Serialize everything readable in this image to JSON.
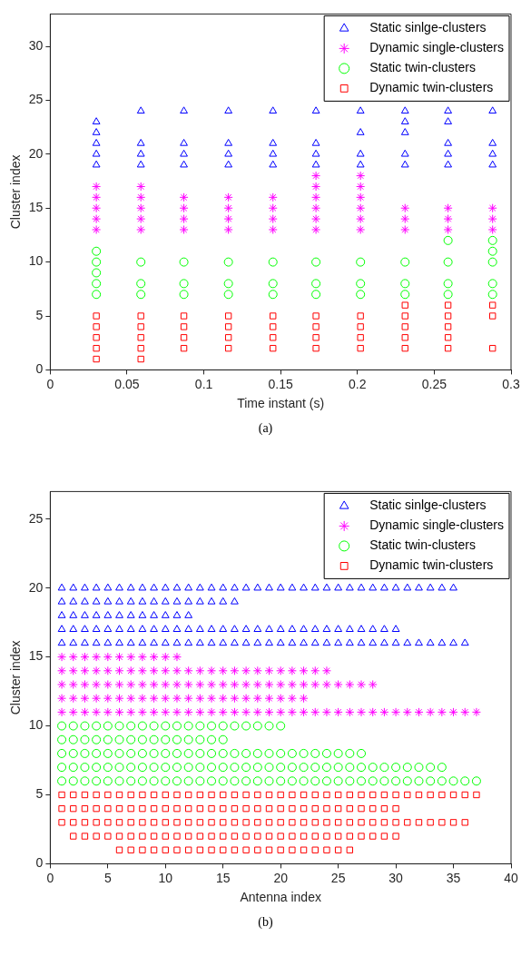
{
  "chart_data": [
    {
      "type": "scatter",
      "xlabel": "Time instant (s)",
      "ylabel": "Cluster index",
      "xlim": [
        0,
        0.3
      ],
      "ylim": [
        0,
        33
      ],
      "xticks": [
        0,
        0.05,
        0.1,
        0.15,
        0.2,
        0.25,
        0.3
      ],
      "yticks": [
        0,
        5,
        10,
        15,
        20,
        25,
        30
      ],
      "grid": false,
      "legend": "top right",
      "annotations": [
        "(a)"
      ],
      "series": [
        {
          "name": "Static sinlge-clusters",
          "color": "#0000ff",
          "marker": "triangle",
          "x": [
            0.03,
            0.03,
            0.03,
            0.03,
            0.03,
            0.059,
            0.059,
            0.059,
            0.059,
            0.087,
            0.087,
            0.087,
            0.087,
            0.116,
            0.116,
            0.116,
            0.116,
            0.145,
            0.145,
            0.145,
            0.145,
            0.173,
            0.173,
            0.173,
            0.173,
            0.202,
            0.202,
            0.202,
            0.202,
            0.231,
            0.231,
            0.231,
            0.231,
            0.231,
            0.259,
            0.259,
            0.259,
            0.259,
            0.259,
            0.288,
            0.288,
            0.288,
            0.288
          ],
          "values": [
            19,
            20,
            21,
            22,
            23,
            19,
            20,
            21,
            24,
            19,
            20,
            21,
            24,
            19,
            20,
            21,
            24,
            19,
            20,
            21,
            24,
            19,
            20,
            21,
            24,
            19,
            20,
            22,
            24,
            19,
            20,
            22,
            23,
            24,
            19,
            20,
            21,
            23,
            24,
            19,
            20,
            21,
            24
          ]
        },
        {
          "name": "Dynamic single-clusters",
          "color": "#ff00ff",
          "marker": "cross",
          "x": [
            0.03,
            0.03,
            0.03,
            0.03,
            0.03,
            0.059,
            0.059,
            0.059,
            0.059,
            0.059,
            0.087,
            0.087,
            0.087,
            0.087,
            0.116,
            0.116,
            0.116,
            0.116,
            0.145,
            0.145,
            0.145,
            0.145,
            0.173,
            0.173,
            0.173,
            0.173,
            0.173,
            0.173,
            0.202,
            0.202,
            0.202,
            0.202,
            0.202,
            0.202,
            0.231,
            0.231,
            0.231,
            0.259,
            0.259,
            0.259,
            0.288,
            0.288,
            0.288
          ],
          "values": [
            13,
            14,
            15,
            16,
            17,
            13,
            14,
            15,
            16,
            17,
            13,
            14,
            15,
            16,
            13,
            14,
            15,
            16,
            13,
            14,
            15,
            16,
            13,
            14,
            15,
            16,
            17,
            18,
            13,
            14,
            15,
            16,
            17,
            18,
            13,
            14,
            15,
            13,
            14,
            15,
            13,
            14,
            15
          ]
        },
        {
          "name": "Static twin-clusters",
          "color": "#00ff00",
          "marker": "circle",
          "x": [
            0.03,
            0.03,
            0.03,
            0.03,
            0.03,
            0.059,
            0.059,
            0.059,
            0.087,
            0.087,
            0.087,
            0.116,
            0.116,
            0.116,
            0.145,
            0.145,
            0.145,
            0.173,
            0.173,
            0.173,
            0.202,
            0.202,
            0.202,
            0.231,
            0.231,
            0.231,
            0.259,
            0.259,
            0.259,
            0.259,
            0.288,
            0.288,
            0.288,
            0.288,
            0.288
          ],
          "values": [
            7,
            8,
            9,
            10,
            11,
            7,
            8,
            10,
            7,
            8,
            10,
            7,
            8,
            10,
            7,
            8,
            10,
            7,
            8,
            10,
            7,
            8,
            10,
            7,
            8,
            10,
            7,
            8,
            10,
            12,
            7,
            8,
            10,
            11,
            12
          ]
        },
        {
          "name": "Dynamic twin-clusters",
          "color": "#ff0000",
          "marker": "square",
          "x": [
            0.03,
            0.03,
            0.03,
            0.03,
            0.03,
            0.059,
            0.059,
            0.059,
            0.059,
            0.059,
            0.087,
            0.087,
            0.087,
            0.087,
            0.116,
            0.116,
            0.116,
            0.116,
            0.145,
            0.145,
            0.145,
            0.145,
            0.173,
            0.173,
            0.173,
            0.173,
            0.202,
            0.202,
            0.202,
            0.202,
            0.231,
            0.231,
            0.231,
            0.231,
            0.231,
            0.259,
            0.259,
            0.259,
            0.259,
            0.259,
            0.288,
            0.288,
            0.288
          ],
          "values": [
            1,
            2,
            3,
            4,
            5,
            1,
            2,
            3,
            4,
            5,
            2,
            3,
            4,
            5,
            2,
            3,
            4,
            5,
            2,
            3,
            4,
            5,
            2,
            3,
            4,
            5,
            2,
            3,
            4,
            5,
            2,
            3,
            4,
            5,
            6,
            2,
            3,
            4,
            5,
            6,
            2,
            5,
            6
          ]
        }
      ]
    },
    {
      "type": "scatter",
      "xlabel": "Antenna index",
      "ylabel": "Cluster index",
      "xlim": [
        0,
        40
      ],
      "ylim": [
        0,
        27
      ],
      "xticks": [
        0,
        5,
        10,
        15,
        20,
        25,
        30,
        35,
        40
      ],
      "yticks": [
        0,
        5,
        10,
        15,
        20,
        25
      ],
      "grid": false,
      "legend": "top right",
      "annotations": [
        "(b)"
      ],
      "series": [
        {
          "name": "Static sinlge-clusters",
          "color": "#0000ff",
          "marker": "triangle",
          "x": [
            1,
            2,
            3,
            4,
            5,
            6,
            7,
            8,
            9,
            10,
            11,
            12,
            13,
            14,
            15,
            16,
            17,
            18,
            19,
            20,
            21,
            22,
            23,
            24,
            25,
            26,
            27,
            28,
            29,
            30,
            31,
            32,
            33,
            34,
            35,
            1,
            2,
            3,
            4,
            5,
            6,
            7,
            8,
            9,
            10,
            11,
            12,
            13,
            14,
            15,
            16,
            1,
            2,
            3,
            4,
            5,
            6,
            7,
            8,
            9,
            10,
            11,
            12,
            1,
            2,
            3,
            4,
            5,
            6,
            7,
            8,
            9,
            10,
            11,
            12,
            13,
            14,
            15,
            16,
            17,
            18,
            19,
            20,
            21,
            22,
            23,
            24,
            25,
            26,
            27,
            28,
            29,
            30,
            1,
            2,
            3,
            4,
            5,
            6,
            7,
            8,
            9,
            10,
            11,
            12,
            13,
            14,
            15,
            16,
            17,
            18,
            19,
            20,
            21,
            22,
            23,
            24,
            25,
            26,
            27,
            28,
            29,
            30,
            31,
            32,
            33,
            34,
            35,
            36
          ],
          "values": [
            20,
            20,
            20,
            20,
            20,
            20,
            20,
            20,
            20,
            20,
            20,
            20,
            20,
            20,
            20,
            20,
            20,
            20,
            20,
            20,
            20,
            20,
            20,
            20,
            20,
            20,
            20,
            20,
            20,
            20,
            20,
            20,
            20,
            20,
            20,
            19,
            19,
            19,
            19,
            19,
            19,
            19,
            19,
            19,
            19,
            19,
            19,
            19,
            19,
            19,
            19,
            18,
            18,
            18,
            18,
            18,
            18,
            18,
            18,
            18,
            18,
            18,
            18,
            17,
            17,
            17,
            17,
            17,
            17,
            17,
            17,
            17,
            17,
            17,
            17,
            17,
            17,
            17,
            17,
            17,
            17,
            17,
            17,
            17,
            17,
            17,
            17,
            17,
            17,
            17,
            17,
            17,
            17,
            16,
            16,
            16,
            16,
            16,
            16,
            16,
            16,
            16,
            16,
            16,
            16,
            16,
            16,
            16,
            16,
            16,
            16,
            16,
            16,
            16,
            16,
            16,
            16,
            16,
            16,
            16,
            16,
            16,
            16,
            16,
            16,
            16,
            16,
            16,
            16
          ]
        },
        {
          "name": "Dynamic single-clusters",
          "color": "#ff00ff",
          "marker": "cross",
          "x": [
            1,
            2,
            3,
            4,
            5,
            6,
            7,
            8,
            9,
            10,
            11,
            1,
            2,
            3,
            4,
            5,
            6,
            7,
            8,
            9,
            10,
            11,
            12,
            13,
            14,
            15,
            16,
            17,
            18,
            19,
            20,
            21,
            22,
            23,
            24,
            1,
            2,
            3,
            4,
            5,
            6,
            7,
            8,
            9,
            10,
            11,
            12,
            13,
            14,
            15,
            16,
            17,
            18,
            19,
            20,
            21,
            22,
            23,
            24,
            25,
            26,
            27,
            28,
            1,
            2,
            3,
            4,
            5,
            6,
            7,
            8,
            9,
            10,
            11,
            12,
            13,
            14,
            15,
            16,
            17,
            18,
            19,
            20,
            21,
            22,
            1,
            2,
            3,
            4,
            5,
            6,
            7,
            8,
            9,
            10,
            11,
            12,
            13,
            14,
            15,
            16,
            17,
            18,
            19,
            20,
            21,
            22,
            23,
            24,
            25,
            26,
            27,
            28,
            29,
            30,
            31,
            32,
            33,
            34,
            35,
            36,
            37
          ],
          "values": [
            15,
            15,
            15,
            15,
            15,
            15,
            15,
            15,
            15,
            15,
            15,
            14,
            14,
            14,
            14,
            14,
            14,
            14,
            14,
            14,
            14,
            14,
            14,
            14,
            14,
            14,
            14,
            14,
            14,
            14,
            14,
            14,
            14,
            14,
            14,
            13,
            13,
            13,
            13,
            13,
            13,
            13,
            13,
            13,
            13,
            13,
            13,
            13,
            13,
            13,
            13,
            13,
            13,
            13,
            13,
            13,
            13,
            13,
            13,
            13,
            13,
            13,
            13,
            12,
            12,
            12,
            12,
            12,
            12,
            12,
            12,
            12,
            12,
            12,
            12,
            12,
            12,
            12,
            12,
            12,
            12,
            12,
            12,
            12,
            12,
            11,
            11,
            11,
            11,
            11,
            11,
            11,
            11,
            11,
            11,
            11,
            11,
            11,
            11,
            11,
            11,
            11,
            11,
            11,
            11,
            11,
            11,
            11,
            11,
            11,
            11,
            11,
            11,
            11,
            11,
            11,
            11,
            11,
            11,
            11,
            11,
            11
          ]
        },
        {
          "name": "Static twin-clusters",
          "color": "#00ff00",
          "marker": "circle",
          "x": [
            1,
            2,
            3,
            4,
            5,
            6,
            7,
            8,
            9,
            10,
            11,
            12,
            13,
            14,
            15,
            16,
            17,
            18,
            19,
            20,
            1,
            2,
            3,
            4,
            5,
            6,
            7,
            8,
            9,
            10,
            11,
            12,
            13,
            14,
            15,
            1,
            2,
            3,
            4,
            5,
            6,
            7,
            8,
            9,
            10,
            11,
            12,
            13,
            14,
            15,
            16,
            17,
            18,
            19,
            20,
            21,
            22,
            23,
            24,
            25,
            26,
            27,
            1,
            2,
            3,
            4,
            5,
            6,
            7,
            8,
            9,
            10,
            11,
            12,
            13,
            14,
            15,
            16,
            17,
            18,
            19,
            20,
            21,
            22,
            23,
            24,
            25,
            26,
            27,
            28,
            29,
            30,
            31,
            32,
            33,
            34,
            1,
            2,
            3,
            4,
            5,
            6,
            7,
            8,
            9,
            10,
            11,
            12,
            13,
            14,
            15,
            16,
            17,
            18,
            19,
            20,
            21,
            22,
            23,
            24,
            25,
            26,
            27,
            28,
            29,
            30,
            31,
            32,
            33,
            34,
            35,
            36,
            37
          ],
          "values": [
            10,
            10,
            10,
            10,
            10,
            10,
            10,
            10,
            10,
            10,
            10,
            10,
            10,
            10,
            10,
            10,
            10,
            10,
            10,
            10,
            9,
            9,
            9,
            9,
            9,
            9,
            9,
            9,
            9,
            9,
            9,
            9,
            9,
            9,
            9,
            8,
            8,
            8,
            8,
            8,
            8,
            8,
            8,
            8,
            8,
            8,
            8,
            8,
            8,
            8,
            8,
            8,
            8,
            8,
            8,
            8,
            8,
            8,
            8,
            8,
            8,
            8,
            7,
            7,
            7,
            7,
            7,
            7,
            7,
            7,
            7,
            7,
            7,
            7,
            7,
            7,
            7,
            7,
            7,
            7,
            7,
            7,
            7,
            7,
            7,
            7,
            7,
            7,
            7,
            7,
            7,
            7,
            7,
            7,
            7,
            7,
            6,
            6,
            6,
            6,
            6,
            6,
            6,
            6,
            6,
            6,
            6,
            6,
            6,
            6,
            6,
            6,
            6,
            6,
            6,
            6,
            6,
            6,
            6,
            6,
            6,
            6,
            6,
            6,
            6,
            6,
            6,
            6,
            6,
            6,
            6,
            6,
            6
          ]
        },
        {
          "name": "Dynamic twin-clusters",
          "color": "#ff0000",
          "marker": "square",
          "x": [
            1,
            2,
            3,
            4,
            5,
            6,
            7,
            8,
            9,
            10,
            11,
            12,
            13,
            14,
            15,
            16,
            17,
            18,
            19,
            20,
            21,
            22,
            23,
            24,
            25,
            26,
            27,
            28,
            29,
            30,
            31,
            32,
            33,
            34,
            35,
            36,
            37,
            1,
            2,
            3,
            4,
            5,
            6,
            7,
            8,
            9,
            10,
            11,
            12,
            13,
            14,
            15,
            16,
            17,
            18,
            19,
            20,
            21,
            22,
            23,
            24,
            25,
            26,
            27,
            28,
            29,
            30,
            1,
            2,
            3,
            4,
            5,
            6,
            7,
            8,
            9,
            10,
            11,
            12,
            13,
            14,
            15,
            16,
            17,
            18,
            19,
            20,
            21,
            22,
            23,
            24,
            25,
            26,
            27,
            28,
            29,
            30,
            31,
            32,
            33,
            34,
            35,
            36,
            2,
            3,
            4,
            5,
            6,
            7,
            8,
            9,
            10,
            11,
            12,
            13,
            14,
            15,
            16,
            17,
            18,
            19,
            20,
            21,
            22,
            23,
            24,
            25,
            26,
            27,
            28,
            29,
            30,
            6,
            7,
            8,
            9,
            10,
            11,
            12,
            13,
            14,
            15,
            16,
            17,
            18,
            19,
            20,
            21,
            22,
            23,
            24,
            25,
            26
          ],
          "values": [
            5,
            5,
            5,
            5,
            5,
            5,
            5,
            5,
            5,
            5,
            5,
            5,
            5,
            5,
            5,
            5,
            5,
            5,
            5,
            5,
            5,
            5,
            5,
            5,
            5,
            5,
            5,
            5,
            5,
            5,
            5,
            5,
            5,
            5,
            5,
            5,
            5,
            4,
            4,
            4,
            4,
            4,
            4,
            4,
            4,
            4,
            4,
            4,
            4,
            4,
            4,
            4,
            4,
            4,
            4,
            4,
            4,
            4,
            4,
            4,
            4,
            4,
            4,
            4,
            4,
            4,
            4,
            3,
            3,
            3,
            3,
            3,
            3,
            3,
            3,
            3,
            3,
            3,
            3,
            3,
            3,
            3,
            3,
            3,
            3,
            3,
            3,
            3,
            3,
            3,
            3,
            3,
            3,
            3,
            3,
            3,
            3,
            3,
            3,
            3,
            3,
            3,
            3,
            2,
            2,
            2,
            2,
            2,
            2,
            2,
            2,
            2,
            2,
            2,
            2,
            2,
            2,
            2,
            2,
            2,
            2,
            2,
            2,
            2,
            2,
            2,
            2,
            2,
            2,
            2,
            2,
            2,
            1,
            1,
            1,
            1,
            1,
            1,
            1,
            1,
            1,
            1,
            1,
            1,
            1,
            1,
            1,
            1,
            1,
            1,
            1,
            1,
            1
          ]
        }
      ]
    }
  ]
}
